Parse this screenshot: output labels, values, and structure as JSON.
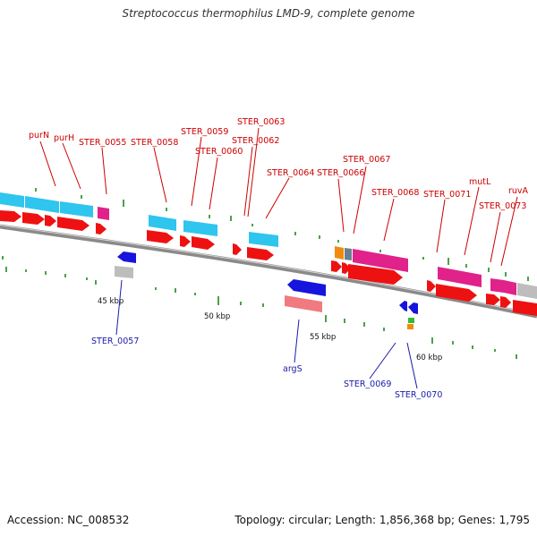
{
  "title": "Streptococcus thermophilus LMD-9, complete genome",
  "footer": {
    "accession": "Accession: NC_008532",
    "topology": "Topology: circular; Length: 1,856,368 bp; Genes: 1,795"
  },
  "colors": {
    "backbone": "#8a8a8a",
    "cyan_gene": "#2ec5ee",
    "magenta_gene": "#e0228a",
    "red_orf": "#ee1111",
    "blue_gene": "#1515dd",
    "salmon_gene": "#f07a80",
    "grey_gene": "#bdbdbd",
    "label_red": "#cc0000",
    "label_blue": "#1a1aaa"
  },
  "scale_labels": [
    "45 kbp",
    "50 kbp",
    "55 kbp",
    "60 kbp"
  ],
  "top_gene_labels": [
    "purN",
    "purH",
    "STER_0055",
    "STER_0058",
    "STER_0059",
    "STER_0060",
    "STER_0062",
    "STER_0063",
    "STER_0064",
    "STER_0066",
    "STER_0067",
    "STER_0068",
    "STER_0071",
    "mutL",
    "STER_0073",
    "ruvA"
  ],
  "bottom_gene_labels": [
    "STER_0057",
    "argS",
    "STER_0069",
    "STER_0070"
  ]
}
